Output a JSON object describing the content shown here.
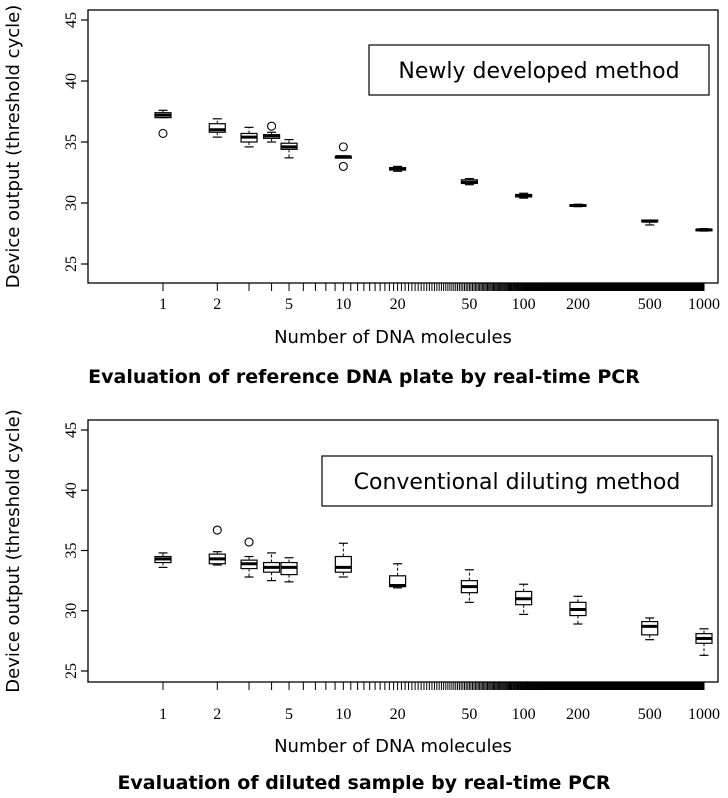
{
  "chart_data": [
    {
      "type": "boxplot",
      "caption": "Evaluation of reference DNA plate by real-time PCR",
      "legend_box": "Newly developed method",
      "xlabel": "Number of DNA molecules",
      "ylabel": "Device output (threshold cycle)",
      "x_scale": "log",
      "x_ticks": [
        1,
        2,
        5,
        10,
        20,
        50,
        100,
        200,
        500,
        1000
      ],
      "y_ticks": [
        25,
        30,
        35,
        40,
        45
      ],
      "ylim": [
        24,
        45
      ],
      "grid": false,
      "boxes": [
        {
          "x": 1,
          "min": 37.0,
          "q1": 37.0,
          "median": 37.2,
          "q3": 37.4,
          "max": 37.6,
          "outliers": [
            35.7
          ]
        },
        {
          "x": 2,
          "min": 35.4,
          "q1": 35.8,
          "median": 36.0,
          "q3": 36.5,
          "max": 36.9,
          "outliers": []
        },
        {
          "x": 3,
          "min": 34.6,
          "q1": 35.0,
          "median": 35.4,
          "q3": 35.7,
          "max": 36.2,
          "outliers": []
        },
        {
          "x": 4,
          "min": 35.0,
          "q1": 35.3,
          "median": 35.5,
          "q3": 35.6,
          "max": 35.8,
          "outliers": [
            36.3
          ]
        },
        {
          "x": 5,
          "min": 33.7,
          "q1": 34.4,
          "median": 34.6,
          "q3": 34.9,
          "max": 35.2,
          "outliers": []
        },
        {
          "x": 10,
          "min": 33.8,
          "q1": 33.8,
          "median": 33.8,
          "q3": 33.8,
          "max": 33.8,
          "outliers": [
            34.6,
            33.0
          ]
        },
        {
          "x": 20,
          "min": 32.6,
          "q1": 32.7,
          "median": 32.8,
          "q3": 32.9,
          "max": 33.0,
          "outliers": []
        },
        {
          "x": 50,
          "min": 31.5,
          "q1": 31.6,
          "median": 31.7,
          "q3": 31.9,
          "max": 32.0,
          "outliers": []
        },
        {
          "x": 100,
          "min": 30.4,
          "q1": 30.5,
          "median": 30.6,
          "q3": 30.7,
          "max": 30.8,
          "outliers": []
        },
        {
          "x": 200,
          "min": 29.7,
          "q1": 29.75,
          "median": 29.8,
          "q3": 29.85,
          "max": 29.9,
          "outliers": []
        },
        {
          "x": 500,
          "min": 28.2,
          "q1": 28.5,
          "median": 28.5,
          "q3": 28.6,
          "max": 28.6,
          "outliers": []
        },
        {
          "x": 1000,
          "min": 27.7,
          "q1": 27.75,
          "median": 27.8,
          "q3": 27.85,
          "max": 27.9,
          "outliers": []
        }
      ]
    },
    {
      "type": "boxplot",
      "caption": "Evaluation of diluted sample by real-time PCR",
      "legend_box": "Conventional diluting method",
      "xlabel": "Number of DNA molecules",
      "ylabel": "Device output (threshold cycle)",
      "x_scale": "log",
      "x_ticks": [
        1,
        2,
        5,
        10,
        20,
        50,
        100,
        200,
        500,
        1000
      ],
      "y_ticks": [
        25,
        30,
        35,
        40,
        45
      ],
      "ylim": [
        24,
        45
      ],
      "grid": false,
      "boxes": [
        {
          "x": 1,
          "min": 33.6,
          "q1": 34.0,
          "median": 34.3,
          "q3": 34.5,
          "max": 34.8,
          "outliers": []
        },
        {
          "x": 2,
          "min": 33.8,
          "q1": 33.9,
          "median": 34.3,
          "q3": 34.7,
          "max": 34.9,
          "outliers": [
            36.7
          ]
        },
        {
          "x": 3,
          "min": 32.8,
          "q1": 33.5,
          "median": 33.9,
          "q3": 34.2,
          "max": 34.5,
          "outliers": [
            35.7
          ]
        },
        {
          "x": 4,
          "min": 32.5,
          "q1": 33.2,
          "median": 33.6,
          "q3": 34.0,
          "max": 34.8,
          "outliers": []
        },
        {
          "x": 5,
          "min": 32.4,
          "q1": 33.0,
          "median": 33.6,
          "q3": 34.0,
          "max": 34.4,
          "outliers": []
        },
        {
          "x": 10,
          "min": 32.8,
          "q1": 33.2,
          "median": 33.6,
          "q3": 34.5,
          "max": 35.6,
          "outliers": []
        },
        {
          "x": 20,
          "min": 31.9,
          "q1": 32.0,
          "median": 32.1,
          "q3": 32.9,
          "max": 33.9,
          "outliers": []
        },
        {
          "x": 50,
          "min": 30.7,
          "q1": 31.5,
          "median": 32.0,
          "q3": 32.5,
          "max": 33.4,
          "outliers": []
        },
        {
          "x": 100,
          "min": 29.7,
          "q1": 30.5,
          "median": 31.0,
          "q3": 31.6,
          "max": 32.2,
          "outliers": []
        },
        {
          "x": 200,
          "min": 28.9,
          "q1": 29.6,
          "median": 30.1,
          "q3": 30.7,
          "max": 31.2,
          "outliers": []
        },
        {
          "x": 500,
          "min": 27.6,
          "q1": 28.0,
          "median": 28.7,
          "q3": 29.1,
          "max": 29.4,
          "outliers": []
        },
        {
          "x": 1000,
          "min": 26.3,
          "q1": 27.3,
          "median": 27.7,
          "q3": 28.1,
          "max": 28.5,
          "outliers": []
        }
      ]
    }
  ]
}
